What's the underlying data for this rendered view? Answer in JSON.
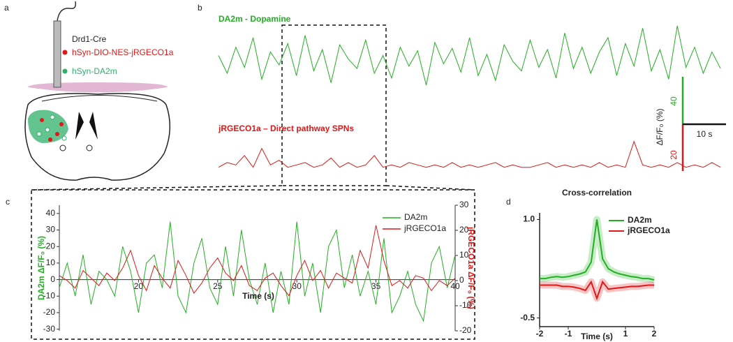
{
  "panel_labels": [
    "a",
    "b",
    "c",
    "d"
  ],
  "diagram": {
    "labels": [
      "Drd1-Cre",
      "hSyn-DIO-NES-jRGECO1a",
      "hSyn-DA2m"
    ]
  },
  "chart_data": [
    {
      "type": "line",
      "x": [
        0,
        2,
        4,
        6,
        8,
        10,
        12,
        14,
        16,
        18,
        20,
        22,
        24,
        26,
        28,
        30,
        32,
        34,
        36,
        38,
        40,
        42,
        44,
        46,
        48,
        50,
        52,
        54,
        56,
        58,
        60,
        62,
        64,
        66,
        68,
        70,
        72,
        74,
        76,
        78,
        80,
        82,
        84,
        86,
        88,
        90,
        92,
        94,
        96,
        98,
        100,
        102,
        104,
        106,
        108,
        110,
        112,
        114,
        116
      ],
      "series": [
        {
          "name": "DA2m - Dopamine",
          "color": "#22b022",
          "values": [
            5,
            -10,
            12,
            -5,
            20,
            -15,
            8,
            -3,
            15,
            -12,
            22,
            -8,
            10,
            -18,
            14,
            2,
            -6,
            18,
            -10,
            5,
            -14,
            12,
            -4,
            9,
            -20,
            16,
            -2,
            11,
            -9,
            20,
            -12,
            6,
            -16,
            14,
            0,
            -8,
            18,
            -5,
            10,
            -14,
            24,
            -6,
            12,
            -10,
            8,
            20,
            -12,
            15,
            -4,
            28,
            -8,
            10,
            -15,
            30,
            -5,
            12,
            -10,
            8,
            -6
          ]
        },
        {
          "name": "jRGECO1a – Direct pathway SPNs",
          "color": "#e01818",
          "values": [
            1,
            3,
            2,
            6,
            1,
            9,
            2,
            4,
            1,
            2,
            3,
            1,
            2,
            5,
            1,
            3,
            1,
            2,
            6,
            1,
            2,
            1,
            3,
            2,
            1,
            2,
            1,
            3,
            1,
            2,
            1,
            2,
            3,
            1,
            2,
            1,
            1,
            2,
            3,
            1,
            2,
            1,
            2,
            1,
            3,
            1,
            2,
            1,
            12,
            2,
            1,
            2,
            1,
            3,
            1,
            2,
            1,
            3,
            1
          ]
        }
      ],
      "scalebar": {
        "x": 10,
        "x_label": "10 s",
        "y": [
          40,
          20
        ],
        "y_label": "ΔF/F₀ (%)"
      }
    },
    {
      "type": "line",
      "x": [
        15,
        15.5,
        16,
        16.5,
        17,
        17.5,
        18,
        18.5,
        19,
        19.5,
        20,
        20.5,
        21,
        21.5,
        22,
        22.5,
        23,
        23.5,
        24,
        24.5,
        25,
        25.5,
        26,
        26.5,
        27,
        27.5,
        28,
        28.5,
        29,
        29.5,
        30,
        30.5,
        31,
        31.5,
        32,
        32.5,
        33,
        33.5,
        34,
        34.5,
        35,
        35.5,
        36,
        36.5,
        37,
        37.5,
        38,
        38.5,
        39,
        39.5,
        40
      ],
      "xlabel": "Time (s)",
      "ylabel": "DA2m ΔF/F₀ (%)",
      "y2label": "jRGECO1a ΔF/F₀ (%)",
      "xlim": [
        15,
        40
      ],
      "xticks": [
        20,
        25,
        30,
        35,
        40
      ],
      "ylim": [
        -31,
        45
      ],
      "yticks": [
        -30,
        -20,
        -10,
        0,
        10,
        20,
        30,
        40
      ],
      "y2lim": [
        -20,
        30
      ],
      "y2ticks": [
        -20,
        -10,
        0,
        10,
        20,
        30
      ],
      "legend": "upper right",
      "series": [
        {
          "name": "DA2m",
          "color": "#22b022",
          "values": [
            -5,
            10,
            -10,
            15,
            -15,
            5,
            0,
            -10,
            20,
            5,
            -20,
            10,
            15,
            -5,
            35,
            -10,
            -20,
            10,
            25,
            -5,
            -15,
            20,
            -10,
            30,
            0,
            -15,
            10,
            -20,
            5,
            -15,
            35,
            -10,
            10,
            -20,
            20,
            30,
            -5,
            15,
            -10,
            5,
            -15,
            25,
            -20,
            -10,
            5,
            -15,
            -25,
            10,
            20,
            -5,
            15
          ]
        },
        {
          "name": "jRGECO1a",
          "color": "#e01818",
          "axis": "y2",
          "values": [
            2,
            0,
            -3,
            4,
            1,
            -2,
            3,
            0,
            5,
            12,
            2,
            -4,
            6,
            1,
            -3,
            8,
            2,
            -5,
            -1,
            5,
            9,
            3,
            0,
            6,
            -2,
            -4,
            1,
            3,
            -2,
            -6,
            2,
            8,
            0,
            4,
            -3,
            3,
            1,
            -1,
            12,
            5,
            22,
            8,
            -2,
            0,
            -3,
            2,
            1,
            -4,
            0,
            -2,
            1
          ]
        }
      ]
    },
    {
      "type": "line",
      "title": "Cross-correlation",
      "xlabel": "Time (s)",
      "x": [
        -2,
        -1.8,
        -1.6,
        -1.4,
        -1.2,
        -1,
        -0.8,
        -0.6,
        -0.4,
        -0.2,
        0,
        0.2,
        0.4,
        0.6,
        0.8,
        1,
        1.2,
        1.4,
        1.6,
        1.8,
        2
      ],
      "xlim": [
        -2,
        2
      ],
      "xticks": [
        -2,
        -1,
        1,
        2
      ],
      "ylim": [
        -0.6,
        1.1
      ],
      "yticks": [
        {
          "value": 1,
          "label": "1.0"
        },
        -0.5
      ],
      "legend": "upper right",
      "series": [
        {
          "name": "DA2m",
          "color": "#22b022",
          "values": [
            0.1,
            0.1,
            0.12,
            0.13,
            0.12,
            0.13,
            0.15,
            0.17,
            0.2,
            0.35,
            1.0,
            0.4,
            0.25,
            0.2,
            0.17,
            0.15,
            0.13,
            0.12,
            0.1,
            0.1,
            0.08
          ]
        },
        {
          "name": "jRGECO1a",
          "color": "#e01818",
          "values": [
            0,
            0,
            0,
            0,
            -0.02,
            -0.02,
            -0.03,
            -0.05,
            -0.08,
            0.05,
            -0.2,
            0.05,
            -0.06,
            -0.05,
            -0.04,
            -0.03,
            -0.02,
            -0.02,
            -0.01,
            0,
            0
          ]
        }
      ]
    }
  ]
}
